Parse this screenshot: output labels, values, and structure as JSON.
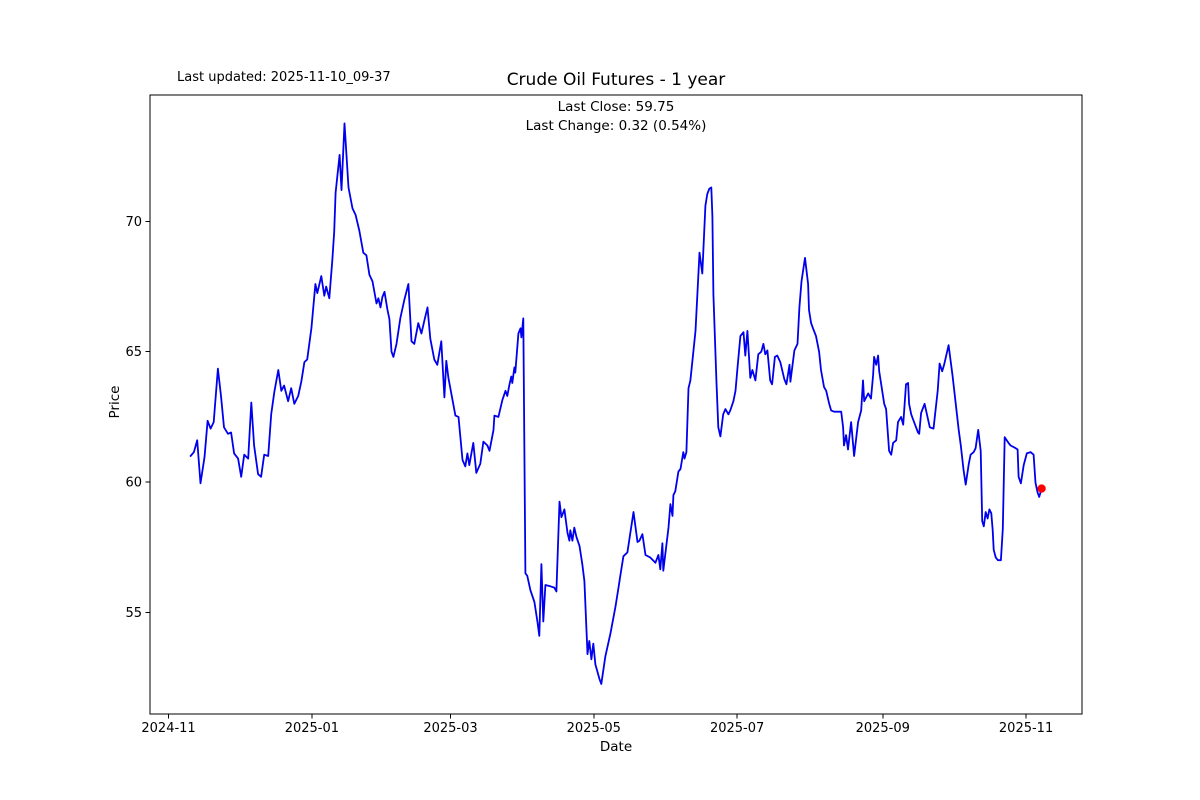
{
  "chart_data": {
    "type": "line",
    "title": "Crude Oil Futures - 1 year",
    "xlabel": "Date",
    "ylabel": "Price",
    "annotations": {
      "last_updated": "Last updated: 2025-11-10_09-37",
      "last_close": "Last Close: 59.75",
      "last_change": "Last Change: 0.32 (0.54%)"
    },
    "last_close_value": 59.75,
    "last_change_value": "0.32 (0.54%)",
    "line_color": "#0000ee",
    "marker_color": "#ff0000",
    "axis_color": "#000000",
    "x_unit": "days since 2024-11-01",
    "xlim": [
      -7.9,
      388.8
    ],
    "ylim": [
      51.1,
      74.85
    ],
    "grid": false,
    "legend": "none",
    "x_ticks": [
      {
        "day": 0,
        "label": "2024-11"
      },
      {
        "day": 61,
        "label": "2025-01"
      },
      {
        "day": 120,
        "label": "2025-03"
      },
      {
        "day": 181,
        "label": "2025-05"
      },
      {
        "day": 242,
        "label": "2025-07"
      },
      {
        "day": 304,
        "label": "2025-09"
      },
      {
        "day": 365,
        "label": "2025-11"
      }
    ],
    "y_ticks": [
      55,
      60,
      65,
      70
    ],
    "last_point": {
      "day": 371.6,
      "price": 59.75
    },
    "points": [
      [
        9.4,
        61.0
      ],
      [
        10.8,
        61.15
      ],
      [
        12.2,
        61.6
      ],
      [
        13.6,
        59.95
      ],
      [
        15.3,
        60.95
      ],
      [
        16.6,
        62.35
      ],
      [
        17.9,
        62.05
      ],
      [
        19.2,
        62.3
      ],
      [
        21.0,
        64.35
      ],
      [
        22.3,
        63.3
      ],
      [
        23.6,
        62.1
      ],
      [
        25.3,
        61.85
      ],
      [
        26.6,
        61.9
      ],
      [
        27.9,
        61.1
      ],
      [
        29.6,
        60.9
      ],
      [
        30.9,
        60.2
      ],
      [
        32.2,
        61.05
      ],
      [
        33.9,
        60.9
      ],
      [
        35.2,
        63.05
      ],
      [
        36.4,
        61.4
      ],
      [
        38.1,
        60.3
      ],
      [
        39.4,
        60.2
      ],
      [
        40.7,
        61.05
      ],
      [
        42.4,
        61.0
      ],
      [
        43.7,
        62.6
      ],
      [
        45.0,
        63.45
      ],
      [
        46.7,
        64.3
      ],
      [
        48.0,
        63.5
      ],
      [
        49.2,
        63.7
      ],
      [
        50.9,
        63.1
      ],
      [
        52.2,
        63.6
      ],
      [
        53.5,
        63.0
      ],
      [
        55.2,
        63.3
      ],
      [
        56.5,
        63.85
      ],
      [
        57.8,
        64.6
      ],
      [
        59.0,
        64.7
      ],
      [
        60.8,
        65.9
      ],
      [
        62.5,
        67.6
      ],
      [
        63.3,
        67.25
      ],
      [
        65.0,
        67.9
      ],
      [
        66.3,
        67.15
      ],
      [
        67.1,
        67.5
      ],
      [
        68.4,
        67.05
      ],
      [
        69.7,
        68.5
      ],
      [
        70.5,
        69.6
      ],
      [
        71.1,
        71.1
      ],
      [
        72.8,
        72.55
      ],
      [
        73.6,
        71.2
      ],
      [
        74.9,
        73.76
      ],
      [
        76.6,
        71.3
      ],
      [
        78.3,
        70.5
      ],
      [
        79.6,
        70.25
      ],
      [
        81.2,
        69.65
      ],
      [
        82.9,
        68.8
      ],
      [
        84.2,
        68.7
      ],
      [
        85.5,
        67.95
      ],
      [
        86.8,
        67.7
      ],
      [
        88.5,
        66.85
      ],
      [
        89.3,
        67.05
      ],
      [
        90.2,
        66.7
      ],
      [
        91.0,
        67.1
      ],
      [
        91.9,
        67.3
      ],
      [
        93.2,
        66.6
      ],
      [
        94.0,
        66.25
      ],
      [
        94.9,
        65.0
      ],
      [
        95.7,
        64.8
      ],
      [
        97.0,
        65.3
      ],
      [
        98.7,
        66.3
      ],
      [
        100.4,
        67.0
      ],
      [
        102.1,
        67.6
      ],
      [
        103.4,
        65.4
      ],
      [
        104.6,
        65.3
      ],
      [
        106.3,
        66.1
      ],
      [
        107.6,
        65.7
      ],
      [
        108.9,
        66.2
      ],
      [
        110.2,
        66.7
      ],
      [
        111.4,
        65.5
      ],
      [
        113.1,
        64.7
      ],
      [
        114.4,
        64.5
      ],
      [
        116.1,
        65.4
      ],
      [
        117.4,
        63.25
      ],
      [
        118.2,
        64.65
      ],
      [
        119.1,
        64.0
      ],
      [
        122.1,
        62.55
      ],
      [
        123.4,
        62.5
      ],
      [
        125.1,
        60.85
      ],
      [
        126.3,
        60.6
      ],
      [
        127.2,
        61.1
      ],
      [
        128.0,
        60.65
      ],
      [
        129.7,
        61.5
      ],
      [
        131.0,
        60.35
      ],
      [
        132.7,
        60.7
      ],
      [
        134.0,
        61.55
      ],
      [
        135.7,
        61.4
      ],
      [
        136.6,
        61.2
      ],
      [
        138.3,
        62.0
      ],
      [
        138.7,
        62.55
      ],
      [
        140.4,
        62.5
      ],
      [
        142.1,
        63.15
      ],
      [
        143.4,
        63.5
      ],
      [
        144.2,
        63.3
      ],
      [
        145.1,
        63.75
      ],
      [
        145.9,
        64.05
      ],
      [
        146.3,
        63.8
      ],
      [
        147.2,
        64.4
      ],
      [
        147.6,
        64.2
      ],
      [
        148.9,
        65.7
      ],
      [
        149.8,
        65.9
      ],
      [
        150.2,
        65.55
      ],
      [
        151.0,
        66.28
      ],
      [
        151.9,
        56.5
      ],
      [
        152.7,
        56.4
      ],
      [
        154.0,
        55.85
      ],
      [
        155.7,
        55.4
      ],
      [
        157.0,
        54.65
      ],
      [
        157.8,
        54.1
      ],
      [
        158.7,
        56.85
      ],
      [
        159.5,
        54.65
      ],
      [
        160.4,
        56.05
      ],
      [
        162.5,
        56.0
      ],
      [
        164.2,
        55.95
      ],
      [
        165.1,
        55.8
      ],
      [
        166.4,
        59.25
      ],
      [
        167.2,
        58.65
      ],
      [
        168.5,
        58.95
      ],
      [
        169.8,
        58.05
      ],
      [
        170.6,
        57.75
      ],
      [
        171.0,
        58.15
      ],
      [
        171.9,
        57.75
      ],
      [
        172.7,
        58.25
      ],
      [
        173.6,
        57.9
      ],
      [
        174.9,
        57.55
      ],
      [
        176.1,
        56.85
      ],
      [
        177.0,
        56.2
      ],
      [
        178.3,
        53.4
      ],
      [
        179.1,
        53.9
      ],
      [
        180.0,
        53.2
      ],
      [
        180.8,
        53.8
      ],
      [
        181.7,
        53.0
      ],
      [
        183.4,
        52.45
      ],
      [
        184.2,
        52.25
      ],
      [
        185.9,
        53.3
      ],
      [
        188.1,
        54.2
      ],
      [
        190.2,
        55.2
      ],
      [
        191.5,
        55.95
      ],
      [
        192.3,
        56.4
      ],
      [
        193.6,
        57.15
      ],
      [
        195.3,
        57.3
      ],
      [
        197.9,
        58.85
      ],
      [
        199.6,
        57.7
      ],
      [
        200.4,
        57.75
      ],
      [
        201.7,
        58.0
      ],
      [
        203.0,
        57.2
      ],
      [
        205.1,
        57.1
      ],
      [
        207.2,
        56.9
      ],
      [
        208.5,
        57.2
      ],
      [
        209.3,
        56.65
      ],
      [
        210.2,
        57.65
      ],
      [
        210.6,
        56.6
      ],
      [
        212.8,
        58.25
      ],
      [
        213.6,
        59.15
      ],
      [
        214.5,
        58.7
      ],
      [
        214.9,
        59.5
      ],
      [
        215.7,
        59.65
      ],
      [
        217.0,
        60.4
      ],
      [
        217.9,
        60.5
      ],
      [
        219.1,
        61.15
      ],
      [
        219.6,
        60.9
      ],
      [
        220.4,
        61.15
      ],
      [
        221.3,
        63.6
      ],
      [
        222.1,
        63.9
      ],
      [
        224.3,
        65.8
      ],
      [
        226.0,
        68.8
      ],
      [
        227.2,
        68.0
      ],
      [
        228.5,
        70.6
      ],
      [
        229.3,
        71.05
      ],
      [
        230.2,
        71.26
      ],
      [
        231.0,
        71.3
      ],
      [
        231.5,
        70.2
      ],
      [
        231.9,
        67.2
      ],
      [
        233.2,
        63.9
      ],
      [
        234.0,
        62.1
      ],
      [
        234.9,
        61.75
      ],
      [
        236.1,
        62.6
      ],
      [
        237.0,
        62.8
      ],
      [
        238.3,
        62.6
      ],
      [
        239.1,
        62.75
      ],
      [
        240.4,
        63.1
      ],
      [
        241.3,
        63.5
      ],
      [
        242.1,
        64.3
      ],
      [
        243.4,
        65.6
      ],
      [
        244.7,
        65.75
      ],
      [
        245.5,
        64.85
      ],
      [
        246.4,
        65.8
      ],
      [
        247.6,
        64.0
      ],
      [
        248.5,
        64.3
      ],
      [
        249.8,
        63.9
      ],
      [
        251.0,
        64.9
      ],
      [
        252.3,
        65.0
      ],
      [
        253.2,
        65.3
      ],
      [
        254.0,
        64.9
      ],
      [
        254.9,
        65.05
      ],
      [
        256.1,
        63.9
      ],
      [
        256.9,
        63.75
      ],
      [
        258.1,
        64.8
      ],
      [
        259.1,
        64.85
      ],
      [
        260.4,
        64.6
      ],
      [
        262.1,
        63.95
      ],
      [
        263.0,
        63.75
      ],
      [
        264.3,
        64.5
      ],
      [
        264.7,
        63.85
      ],
      [
        266.4,
        65.05
      ],
      [
        267.7,
        65.3
      ],
      [
        268.5,
        66.7
      ],
      [
        269.4,
        67.7
      ],
      [
        270.9,
        68.6
      ],
      [
        272.2,
        67.6
      ],
      [
        272.6,
        66.6
      ],
      [
        273.5,
        66.1
      ],
      [
        274.3,
        65.9
      ],
      [
        275.6,
        65.6
      ],
      [
        276.9,
        65.0
      ],
      [
        277.7,
        64.3
      ],
      [
        279.0,
        63.65
      ],
      [
        279.9,
        63.5
      ],
      [
        281.2,
        63.0
      ],
      [
        282.0,
        62.75
      ],
      [
        283.3,
        62.7
      ],
      [
        285.0,
        62.7
      ],
      [
        286.3,
        62.7
      ],
      [
        287.1,
        62.1
      ],
      [
        287.5,
        61.4
      ],
      [
        288.4,
        61.8
      ],
      [
        289.2,
        61.25
      ],
      [
        290.5,
        62.3
      ],
      [
        291.4,
        61.4
      ],
      [
        291.8,
        61.0
      ],
      [
        293.5,
        62.3
      ],
      [
        294.8,
        62.75
      ],
      [
        295.6,
        63.9
      ],
      [
        296.1,
        63.1
      ],
      [
        297.8,
        63.4
      ],
      [
        299.0,
        63.2
      ],
      [
        299.9,
        64.1
      ],
      [
        300.3,
        64.8
      ],
      [
        301.2,
        64.5
      ],
      [
        302.0,
        64.85
      ],
      [
        302.5,
        64.25
      ],
      [
        304.6,
        63.0
      ],
      [
        305.4,
        62.8
      ],
      [
        306.7,
        61.2
      ],
      [
        307.6,
        61.05
      ],
      [
        308.4,
        61.5
      ],
      [
        309.7,
        61.6
      ],
      [
        310.5,
        62.3
      ],
      [
        311.8,
        62.5
      ],
      [
        312.7,
        62.2
      ],
      [
        313.9,
        63.75
      ],
      [
        314.8,
        63.8
      ],
      [
        315.2,
        63.0
      ],
      [
        316.1,
        62.6
      ],
      [
        316.9,
        62.4
      ],
      [
        319.0,
        61.9
      ],
      [
        319.5,
        61.85
      ],
      [
        320.3,
        62.65
      ],
      [
        321.8,
        63.0
      ],
      [
        324.0,
        62.1
      ],
      [
        325.6,
        62.05
      ],
      [
        327.4,
        63.5
      ],
      [
        328.2,
        64.55
      ],
      [
        329.3,
        64.25
      ],
      [
        330.1,
        64.5
      ],
      [
        332.0,
        65.25
      ],
      [
        333.7,
        64.1
      ],
      [
        335.0,
        63.05
      ],
      [
        336.3,
        62.0
      ],
      [
        337.2,
        61.4
      ],
      [
        338.4,
        60.45
      ],
      [
        339.3,
        59.9
      ],
      [
        340.6,
        60.7
      ],
      [
        341.4,
        61.05
      ],
      [
        342.7,
        61.15
      ],
      [
        343.5,
        61.3
      ],
      [
        344.6,
        62.0
      ],
      [
        345.7,
        61.2
      ],
      [
        346.3,
        58.5
      ],
      [
        347.0,
        58.3
      ],
      [
        347.8,
        58.85
      ],
      [
        348.6,
        58.6
      ],
      [
        349.4,
        58.95
      ],
      [
        350.2,
        58.8
      ],
      [
        350.8,
        58.15
      ],
      [
        351.2,
        57.4
      ],
      [
        352.1,
        57.1
      ],
      [
        353.0,
        57.0
      ],
      [
        354.3,
        57.0
      ],
      [
        355.1,
        58.2
      ],
      [
        355.9,
        61.72
      ],
      [
        357.5,
        61.5
      ],
      [
        358.4,
        61.4
      ],
      [
        360.6,
        61.3
      ],
      [
        361.4,
        61.25
      ],
      [
        361.8,
        60.2
      ],
      [
        362.8,
        59.95
      ],
      [
        364.0,
        60.65
      ],
      [
        365.3,
        61.1
      ],
      [
        366.9,
        61.15
      ],
      [
        368.2,
        61.05
      ],
      [
        369.0,
        59.97
      ],
      [
        369.9,
        59.6
      ],
      [
        370.6,
        59.43
      ],
      [
        371.6,
        59.75
      ]
    ]
  }
}
